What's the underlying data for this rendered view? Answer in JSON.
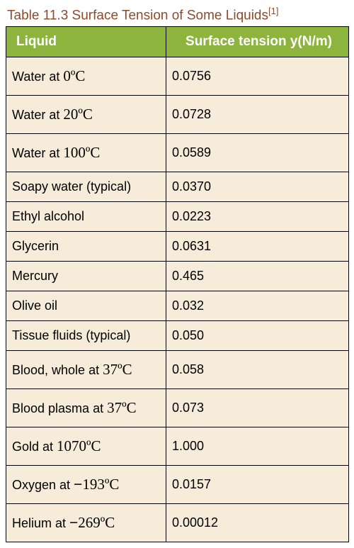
{
  "colors": {
    "caption": "#8a4b2e",
    "header_bg": "#8db53e",
    "header_text": "#ffffff",
    "cell_bg": "#f6ecd9",
    "border": "#000000"
  },
  "caption": {
    "prefix": "Table 11.3",
    "text": " Surface Tension of Some Liquids",
    "citation": "[1]"
  },
  "headers": {
    "liquid": "Liquid",
    "tension": "Surface tension y(N/m)"
  },
  "rows": [
    {
      "liquid_prefix": "Water at ",
      "temp": "0ºC",
      "tension": "0.0756",
      "tall": true
    },
    {
      "liquid_prefix": "Water at ",
      "temp": "20ºC",
      "tension": "0.0728",
      "tall": true
    },
    {
      "liquid_prefix": "Water at ",
      "temp": "100ºC",
      "tension": "0.0589",
      "tall": true
    },
    {
      "liquid_prefix": "Soapy water (typical)",
      "temp": "",
      "tension": "0.0370"
    },
    {
      "liquid_prefix": "Ethyl alcohol",
      "temp": "",
      "tension": "0.0223"
    },
    {
      "liquid_prefix": "Glycerin",
      "temp": "",
      "tension": "0.0631"
    },
    {
      "liquid_prefix": "Mercury",
      "temp": "",
      "tension": "0.465"
    },
    {
      "liquid_prefix": "Olive oil",
      "temp": "",
      "tension": "0.032"
    },
    {
      "liquid_prefix": "Tissue fluids (typical)",
      "temp": "",
      "tension": "0.050"
    },
    {
      "liquid_prefix": "Blood, whole at ",
      "temp": "37ºC",
      "tension": "0.058",
      "tall": true
    },
    {
      "liquid_prefix": "Blood plasma at ",
      "temp": "37ºC",
      "tension": "0.073",
      "tall": true
    },
    {
      "liquid_prefix": "Gold at ",
      "temp": "1070ºC",
      "tension": "1.000",
      "tall": true
    },
    {
      "liquid_prefix": "Oxygen at ",
      "temp_minus": "−",
      "temp": "193ºC",
      "tension": "0.0157",
      "tall": true
    },
    {
      "liquid_prefix": "Helium at ",
      "temp_minus": "−",
      "temp": "269ºC",
      "tension": "0.00012",
      "tall": true
    }
  ]
}
